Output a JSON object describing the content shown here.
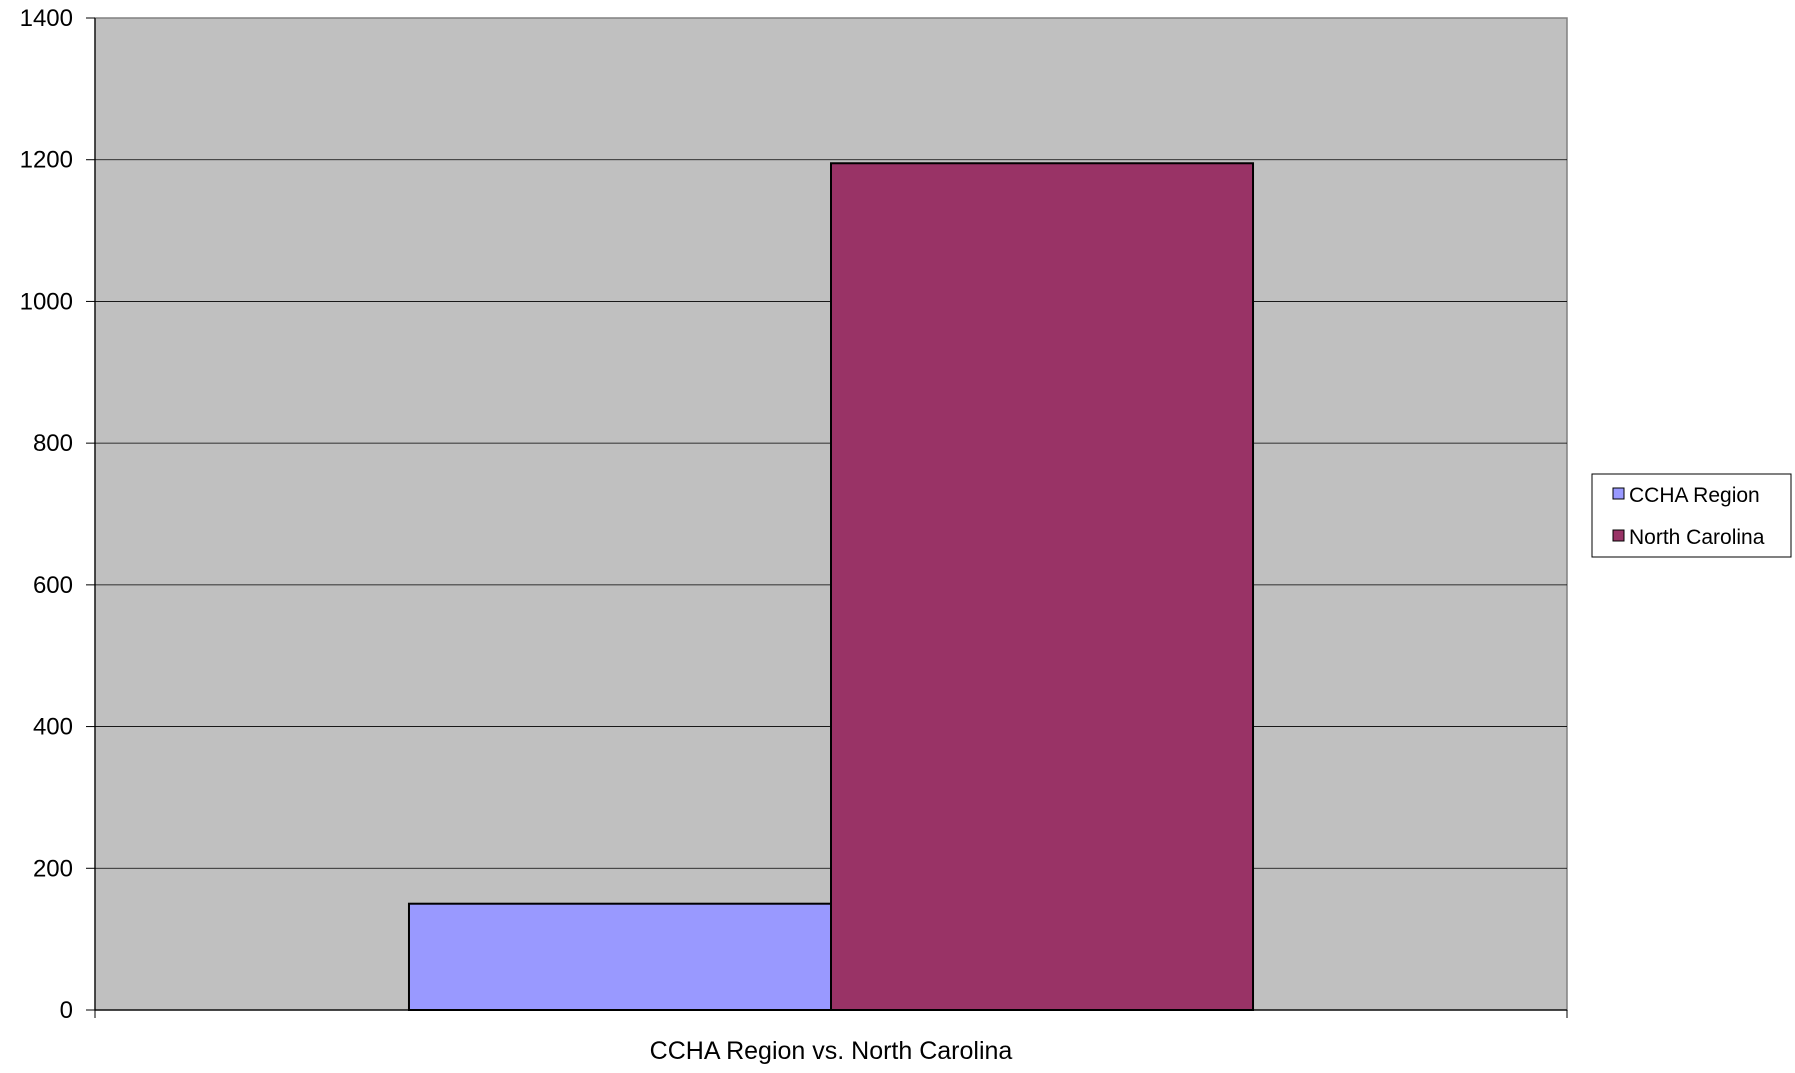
{
  "chart_data": {
    "type": "bar",
    "categories": [
      "CCHA Region vs. North Carolina"
    ],
    "series": [
      {
        "name": "CCHA Region",
        "values": [
          150
        ],
        "color": "#9999ff"
      },
      {
        "name": "North Carolina",
        "values": [
          1195
        ],
        "color": "#993366"
      }
    ],
    "title": "",
    "xlabel": "",
    "ylabel": "",
    "ylim": [
      0,
      1400
    ],
    "yticks": [
      "0",
      "200",
      "400",
      "600",
      "800",
      "1000",
      "1200",
      "1400"
    ],
    "grid": true,
    "plot_background": "#c0c0c0",
    "legend_position": "right"
  }
}
